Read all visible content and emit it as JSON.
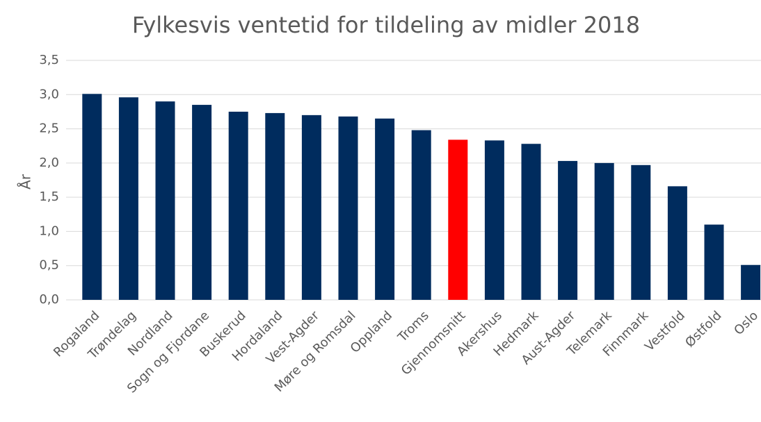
{
  "chart_data": {
    "type": "bar",
    "title": "Fylkesvis ventetid for tildeling av midler 2018",
    "y_label": "År",
    "categories": [
      "Rogaland",
      "Trøndelag",
      "Nordland",
      "Sogn og Fjordane",
      "Buskerud",
      "Hordaland",
      "Vest-Agder",
      "Møre og Romsdal",
      "Oppland",
      "Troms",
      "Gjennomsnitt",
      "Akershus",
      "Hedmark",
      "Aust-Agder",
      "Telemark",
      "Finnmark",
      "Vestfold",
      "Østfold",
      "Oslo"
    ],
    "values": [
      3.01,
      2.96,
      2.9,
      2.85,
      2.75,
      2.73,
      2.7,
      2.68,
      2.65,
      2.48,
      2.34,
      2.33,
      2.28,
      2.03,
      2.0,
      1.97,
      1.66,
      1.1,
      0.51
    ],
    "colors": [
      "#002c5e",
      "#002c5e",
      "#002c5e",
      "#002c5e",
      "#002c5e",
      "#002c5e",
      "#002c5e",
      "#002c5e",
      "#002c5e",
      "#002c5e",
      "#ff0000",
      "#002c5e",
      "#002c5e",
      "#002c5e",
      "#002c5e",
      "#002c5e",
      "#002c5e",
      "#002c5e",
      "#002c5e"
    ],
    "ylim": [
      0,
      3.5
    ],
    "yticks": [
      {
        "value": 0,
        "label": "0,0"
      },
      {
        "value": 0.5,
        "label": "0,5"
      },
      {
        "value": 1,
        "label": "1,0"
      },
      {
        "value": 1.5,
        "label": "1,5"
      },
      {
        "value": 2,
        "label": "2,0"
      },
      {
        "value": 2.5,
        "label": "2,5"
      },
      {
        "value": 3,
        "label": "3,0"
      },
      {
        "value": 3.5,
        "label": "3,5"
      }
    ],
    "grid": true
  }
}
